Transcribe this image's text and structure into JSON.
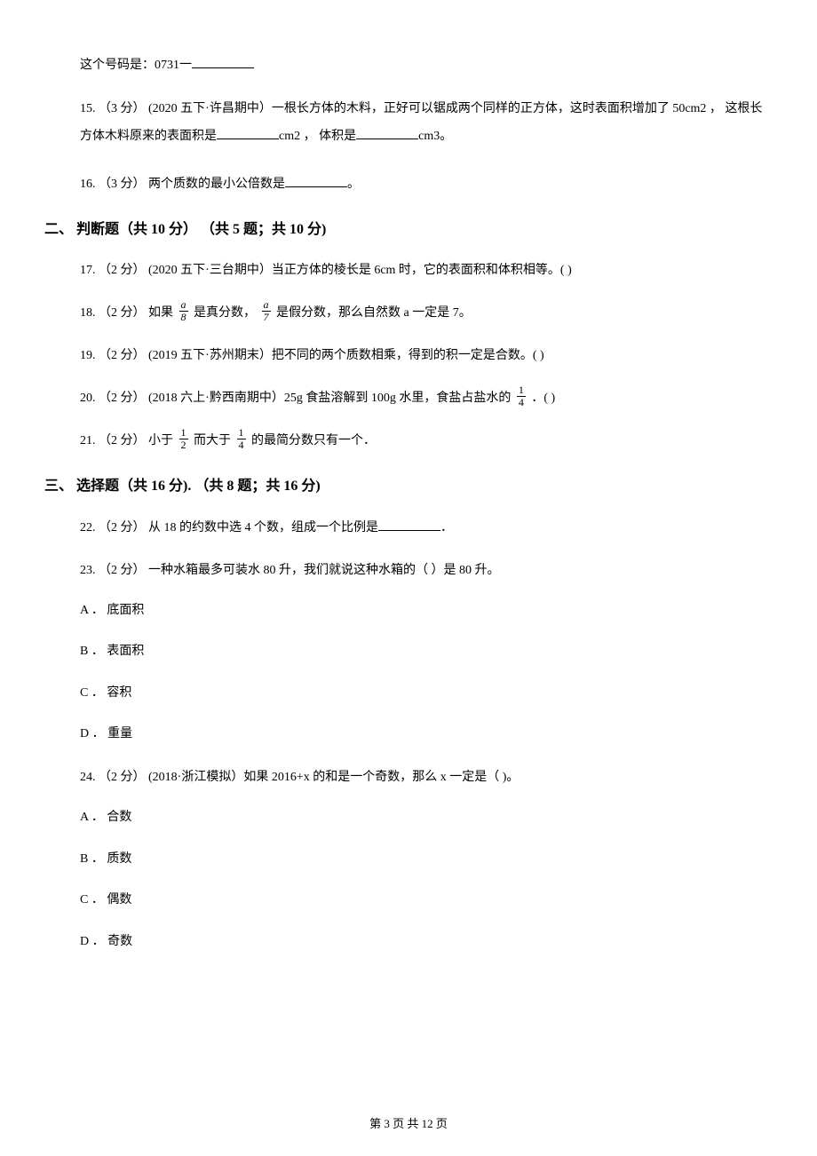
{
  "q14_tail": "这个号码是：0731一",
  "q15": {
    "prefix": "15. （3 分） (2020 五下·许昌期中）一根长方体的木料，正好可以锯成两个同样的正方体，这时表面积增加了 50cm2 ，  这根长方体木料原来的表面积是",
    "mid1": "cm2 ，  体积是",
    "mid2": "cm3。"
  },
  "q16": {
    "prefix": "16. （3 分） 两个质数的最小公倍数是",
    "suffix": "。"
  },
  "section2": "二、 判断题（共 10 分） （共 5 题；共 10 分)",
  "q17": "17. （2 分） (2020 五下·三台期中）当正方体的棱长是 6cm 时，它的表面积和体积相等。(       )",
  "q18": {
    "prefix": "18. （2 分） 如果 ",
    "frac1_num": "a",
    "frac1_den": "8",
    "mid1": " 是真分数， ",
    "frac2_num": "a",
    "frac2_den": "7",
    "suffix": " 是假分数，那么自然数 a 一定是 7。"
  },
  "q19": "19. （2 分） (2019 五下·苏州期末）把不同的两个质数相乘，得到的积一定是合数。(       )",
  "q20": {
    "prefix": "20. （2 分） (2018 六上·黔西南期中）25g 食盐溶解到 100g 水里，食盐占盐水的 ",
    "frac_num": "1",
    "frac_den": "4",
    "suffix": " ．(        )"
  },
  "q21": {
    "prefix": "21. （2 分） 小于 ",
    "frac1_num": "1",
    "frac1_den": "2",
    "mid": " 而大于 ",
    "frac2_num": "1",
    "frac2_den": "4",
    "suffix": " 的最简分数只有一个．"
  },
  "section3": "三、 选择题（共 16 分). （共 8 题；共 16 分)",
  "q22": {
    "prefix": "22. （2 分） 从 18 的约数中选 4 个数，组成一个比例是",
    "suffix": "．"
  },
  "q23": "23. （2 分） 一种水箱最多可装水 80 升，我们就说这种水箱的（      ）是 80 升。",
  "q23_options": {
    "A": "A ． 底面积",
    "B": "B ． 表面积",
    "C": "C ． 容积",
    "D": "D ． 重量"
  },
  "q24": "24. （2 分） (2018·浙江模拟）如果 2016+x 的和是一个奇数，那么 x 一定是（      )。",
  "q24_options": {
    "A": "A ． 合数",
    "B": "B ． 质数",
    "C": "C ． 偶数",
    "D": "D ． 奇数"
  },
  "footer": "第 3 页 共 12 页"
}
